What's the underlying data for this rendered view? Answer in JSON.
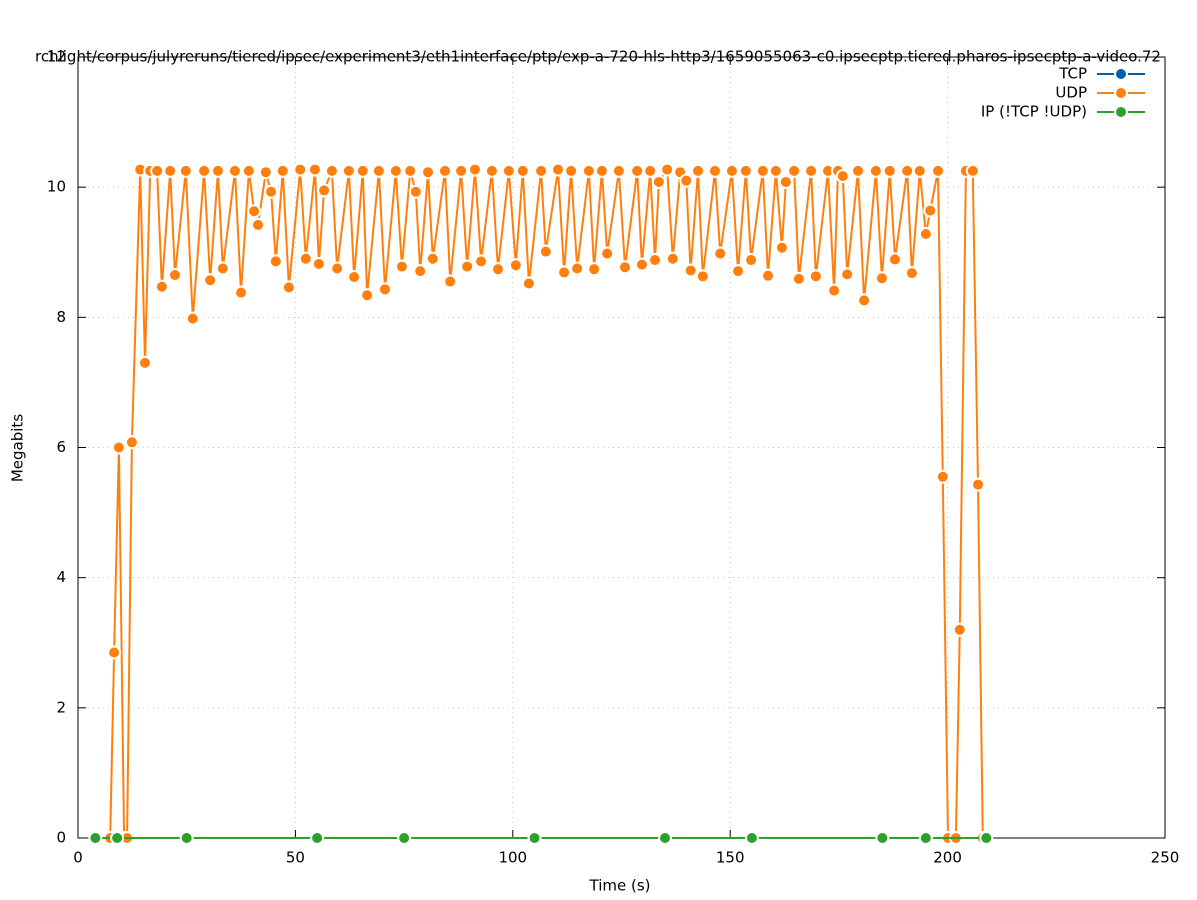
{
  "chart_data": {
    "type": "line",
    "title": "rchlight/corpus/julyreruns/tiered/ipsec/experiment3/eth1interface/ptp/exp-a-720-hls-http3/1659055063-c0.ipsecptp.tiered.pharos-ipsecptp-a-video.72",
    "x_label": "Time (s)",
    "y_label": "Megabits",
    "xlim": [
      0,
      250
    ],
    "xticks": [
      0,
      50,
      100,
      150,
      200,
      250
    ],
    "ylim": [
      0,
      12
    ],
    "yticks": [
      0,
      2,
      4,
      6,
      8,
      10,
      12
    ],
    "grid": true,
    "legend": "upper right",
    "series": [
      {
        "name": "TCP",
        "color": "#0060ad",
        "x": [],
        "values": []
      },
      {
        "name": "UDP",
        "color": "#ff7f0e",
        "x": [
          7.4,
          8.3,
          9.4,
          10.6,
          11.3,
          12.4,
          14.3,
          15.4,
          16.6,
          18.2,
          19.3,
          21.2,
          22.3,
          24.8,
          26.4,
          29.0,
          30.4,
          32.2,
          33.3,
          36.1,
          37.5,
          39.3,
          40.5,
          41.4,
          43.2,
          44.4,
          45.5,
          47.1,
          48.5,
          51.1,
          52.4,
          54.5,
          55.4,
          56.6,
          58.4,
          59.6,
          62.3,
          63.5,
          65.5,
          66.5,
          69.2,
          70.6,
          73.1,
          74.5,
          76.4,
          77.7,
          78.7,
          80.5,
          81.6,
          84.4,
          85.6,
          88.1,
          89.5,
          91.3,
          92.7,
          95.2,
          96.6,
          99.1,
          100.7,
          102.3,
          103.7,
          106.5,
          107.6,
          110.4,
          111.8,
          113.4,
          114.8,
          117.5,
          118.7,
          120.5,
          121.7,
          124.4,
          125.8,
          128.6,
          129.7,
          131.6,
          132.7,
          133.6,
          135.5,
          136.8,
          138.5,
          139.9,
          140.9,
          142.6,
          143.7,
          146.5,
          147.7,
          150.4,
          151.8,
          153.6,
          154.8,
          157.5,
          158.7,
          160.5,
          161.9,
          162.8,
          164.7,
          165.8,
          168.6,
          169.7,
          172.5,
          173.9,
          174.8,
          175.9,
          176.9,
          179.4,
          180.8,
          183.5,
          184.9,
          186.7,
          187.9,
          190.7,
          191.8,
          193.6,
          195.0,
          196.0,
          197.8,
          198.9,
          200.1,
          201.9,
          202.8,
          204.2,
          205.8,
          207.0,
          208.1
        ],
        "values": [
          0,
          2.85,
          6.0,
          0,
          0,
          6.08,
          10.27,
          7.3,
          10.25,
          10.25,
          8.47,
          10.25,
          8.65,
          10.25,
          7.98,
          10.25,
          8.57,
          10.25,
          8.75,
          10.25,
          8.38,
          10.25,
          9.63,
          9.42,
          10.23,
          9.93,
          8.86,
          10.25,
          8.46,
          10.27,
          8.9,
          10.27,
          8.82,
          9.95,
          10.25,
          8.75,
          10.25,
          8.62,
          10.25,
          8.34,
          10.25,
          8.43,
          10.25,
          8.78,
          10.25,
          9.93,
          8.71,
          10.23,
          8.9,
          10.25,
          8.55,
          10.25,
          8.78,
          10.27,
          8.86,
          10.25,
          8.74,
          10.25,
          8.8,
          10.25,
          8.52,
          10.25,
          9.01,
          10.27,
          8.69,
          10.25,
          8.75,
          10.25,
          8.74,
          10.25,
          8.98,
          10.25,
          8.77,
          10.25,
          8.81,
          10.25,
          8.88,
          10.08,
          10.27,
          8.9,
          10.23,
          10.1,
          8.72,
          10.25,
          8.63,
          10.25,
          8.98,
          10.25,
          8.71,
          10.25,
          8.88,
          10.25,
          8.64,
          10.25,
          9.07,
          10.08,
          10.25,
          8.59,
          10.25,
          8.63,
          10.25,
          8.41,
          10.25,
          10.17,
          8.66,
          10.25,
          8.26,
          10.25,
          8.6,
          10.25,
          8.89,
          10.25,
          8.68,
          10.25,
          9.28,
          9.64,
          10.25,
          5.55,
          0,
          0,
          3.2,
          10.25,
          10.25,
          5.43,
          0
        ]
      },
      {
        "name": "IP (!TCP  !UDP)",
        "color": "#2ca02c",
        "x": [
          4,
          9,
          25,
          55,
          75,
          105,
          135,
          155,
          185,
          195,
          208.9
        ],
        "values": [
          0,
          0,
          0,
          0,
          0,
          0,
          0,
          0,
          0,
          0,
          0
        ]
      }
    ]
  }
}
